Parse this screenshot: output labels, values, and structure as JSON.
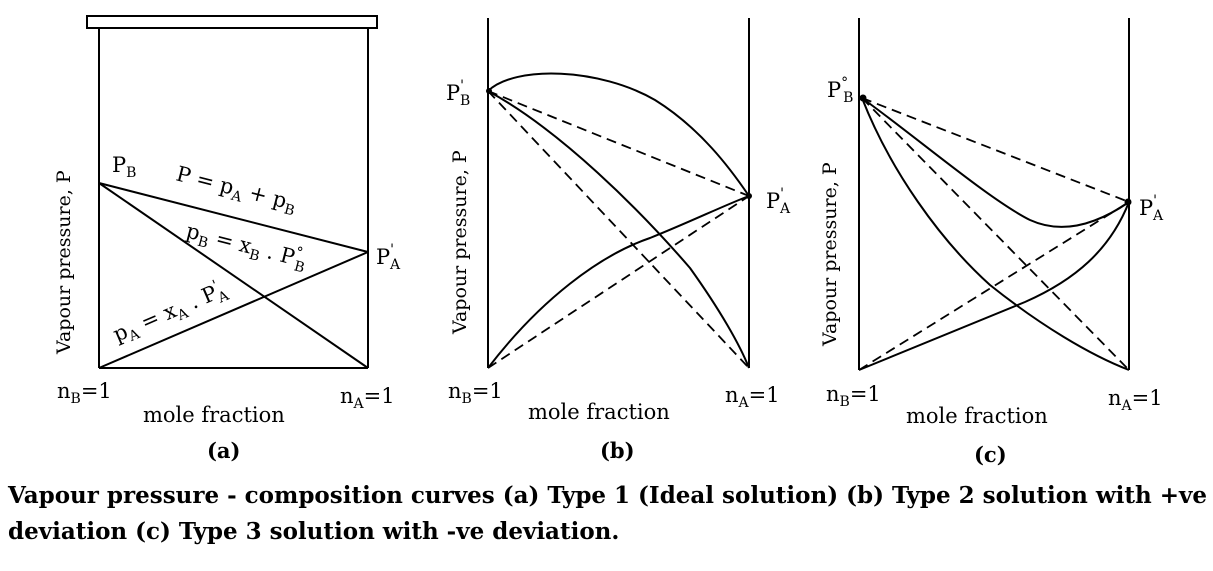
{
  "panels": [
    {
      "letter": "(a)",
      "y_label": "Vapour pressure, P",
      "x_label": "mole fraction",
      "left_end": "n_B=1",
      "right_end": "n_A=1",
      "pb_label": "P_B",
      "pa_label": "P'_A",
      "total_eq": "P = p_A + p_B",
      "pb_eq": "p_B = x_B . P°_B",
      "pa_eq": "p_A = x_A . P'_A"
    },
    {
      "letter": "(b)",
      "y_label": "Vapour pressure, P",
      "x_label": "mole fraction",
      "left_end": "n_B=1",
      "right_end": "n_A=1",
      "pb_label": "P'_B",
      "pa_label": "P'_A"
    },
    {
      "letter": "(c)",
      "y_label": "Vapour pressure, P",
      "x_label": "mole fraction",
      "left_end": "n_B=1",
      "right_end": "n_A=1",
      "pb_label": "P°_B",
      "pa_label": "P'_A"
    }
  ],
  "caption": "Vapour pressure - composition curves (a) Type 1 (Ideal solution) (b) Type 2 solution with +ve deviation (c) Type 3 solution with -ve deviation."
}
